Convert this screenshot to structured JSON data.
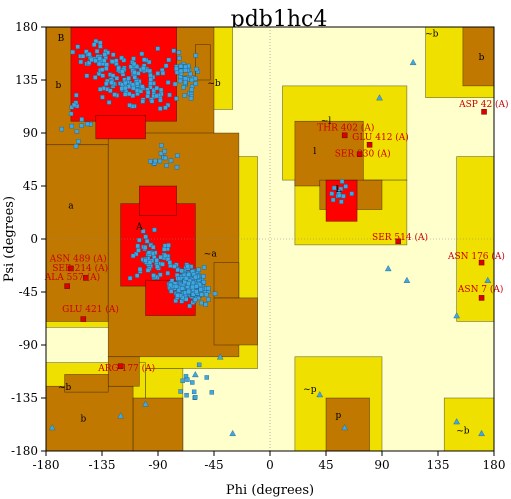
{
  "chart_data": {
    "type": "scatter",
    "title": "pdb1hc4",
    "xlabel": "Phi (degrees)",
    "ylabel": "Psi (degrees)",
    "xlim": [
      -180,
      180
    ],
    "ylim": [
      -180,
      180
    ],
    "xticks": [
      -180,
      -135,
      -90,
      -45,
      0,
      45,
      90,
      135,
      180
    ],
    "yticks": [
      -180,
      -135,
      -90,
      -45,
      0,
      45,
      90,
      135,
      180
    ],
    "x_tick_labels": [
      "-180",
      "-135",
      "-90",
      "-45",
      "0",
      "45",
      "90",
      "135",
      "180"
    ],
    "y_tick_labels": [
      "-180",
      "-135",
      "-90",
      "-45",
      "0",
      "45",
      "90",
      "135",
      "180"
    ],
    "colors": {
      "core": "#ff0000",
      "allowed": "#c07800",
      "generous": "#f0e000",
      "disallowed": "#ffffcc",
      "point": "#40a8e0",
      "outlier": "#dd0000",
      "label": "#cc0000"
    },
    "regions": [
      {
        "label": "B",
        "type": "core",
        "x": -168,
        "y": 168
      },
      {
        "label": "b",
        "type": "allowed",
        "x": -170,
        "y": 128
      },
      {
        "label": "~b",
        "type": "generous",
        "x": -45,
        "y": 130
      },
      {
        "label": "~l",
        "type": "generous",
        "x": 45,
        "y": 98
      },
      {
        "label": "l",
        "type": "allowed",
        "x": 36,
        "y": 72
      },
      {
        "label": "L",
        "type": "core",
        "x": 55,
        "y": 40
      },
      {
        "label": "a",
        "type": "allowed",
        "x": -160,
        "y": 26
      },
      {
        "label": "A",
        "type": "core",
        "x": -105,
        "y": 8
      },
      {
        "label": "~a",
        "type": "generous",
        "x": -48,
        "y": -15
      },
      {
        "label": "~b",
        "type": "generous",
        "x": 130,
        "y": 172
      },
      {
        "label": "b",
        "type": "allowed",
        "x": 170,
        "y": 152
      },
      {
        "label": "~b",
        "type": "generous",
        "x": -165,
        "y": -128
      },
      {
        "label": "b",
        "type": "allowed",
        "x": -150,
        "y": -155
      },
      {
        "label": "~p",
        "type": "generous",
        "x": 32,
        "y": -130
      },
      {
        "label": "p",
        "type": "allowed",
        "x": 55,
        "y": -152
      },
      {
        "label": "~b",
        "type": "generous",
        "x": 155,
        "y": -165
      }
    ],
    "labeled_outliers": [
      {
        "label": "THR 402 (A)",
        "x": 60,
        "y": 88,
        "lx": 38,
        "ly": 92
      },
      {
        "label": "GLU 412 (A)",
        "x": 80,
        "y": 80,
        "lx": 66,
        "ly": 84
      },
      {
        "label": "SER 330 (A)",
        "x": 72,
        "y": 72,
        "lx": 52,
        "ly": 70
      },
      {
        "label": "ASP 42 (A)",
        "x": 172,
        "y": 108,
        "lx": 152,
        "ly": 112
      },
      {
        "label": "SER 514 (A)",
        "x": 103,
        "y": -2,
        "lx": 82,
        "ly": -1
      },
      {
        "label": "ASN 176 (A)",
        "x": 170,
        "y": -20,
        "lx": 143,
        "ly": -17
      },
      {
        "label": "ASN 7 (A)",
        "x": 170,
        "y": -50,
        "lx": 151,
        "ly": -45
      },
      {
        "label": "ASN 489 (A)",
        "x": -160,
        "y": -25,
        "lx": -177,
        "ly": -19
      },
      {
        "label": "SER 214 (A)",
        "x": -148,
        "y": -33,
        "lx": -175,
        "ly": -27
      },
      {
        "label": "ALA 557 (A)",
        "x": -163,
        "y": -40,
        "lx": -181,
        "ly": -35
      },
      {
        "label": "GLU 421 (A)",
        "x": -150,
        "y": -68,
        "lx": -167,
        "ly": -62
      },
      {
        "label": "ARG 177 (A)",
        "x": -120,
        "y": -108,
        "lx": -138,
        "ly": -112
      }
    ]
  }
}
